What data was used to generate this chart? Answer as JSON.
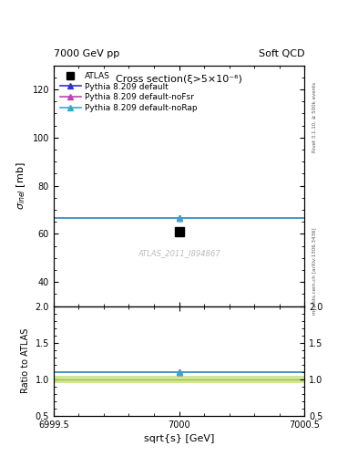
{
  "title_left": "7000 GeV pp",
  "title_right": "Soft QCD",
  "main_title": "Cross section(ξ>5×10⁻⁶)",
  "watermark": "ATLAS_2011_I894867",
  "right_label_top": "Rivet 3.1.10, ≥ 500k events",
  "right_label_bot": "mcplots.cern.ch [arXiv:1306.3436]",
  "xlabel": "sqrt{s} [GeV]",
  "ylabel_main": "σ_{inel} [mb]",
  "ylabel_ratio": "Ratio to ATLAS",
  "xlim": [
    6999.5,
    7000.5
  ],
  "ylim_main": [
    30,
    130
  ],
  "ylim_ratio": [
    0.5,
    2.0
  ],
  "yticks_main": [
    40,
    60,
    80,
    100,
    120
  ],
  "yticks_ratio": [
    0.5,
    1.0,
    1.5,
    2.0
  ],
  "xticks": [
    6999.5,
    7000.0,
    7000.5
  ],
  "xticklabels": [
    "6999.5",
    "7000",
    "7000.5"
  ],
  "data_x": 7000.0,
  "data_y": 61.0,
  "line_x": [
    6999.5,
    7000.5
  ],
  "pythia_default_y": 66.5,
  "pythia_noFsr_y": 66.5,
  "pythia_noRap_y": 66.5,
  "ratio_default": 1.09,
  "ratio_noFsr": 1.09,
  "ratio_noRap": 1.09,
  "color_data": "#000000",
  "color_default": "#3333cc",
  "color_noFsr": "#bb44bb",
  "color_noRap": "#33aacc",
  "color_band_fill": "#bbdd66",
  "color_band_edge": "#99bb44",
  "band_low": 0.95,
  "band_high": 1.05,
  "legend_labels": [
    "ATLAS",
    "Pythia 8.209 default",
    "Pythia 8.209 default-noFsr",
    "Pythia 8.209 default-noRap"
  ],
  "fig_width": 3.93,
  "fig_height": 5.12
}
